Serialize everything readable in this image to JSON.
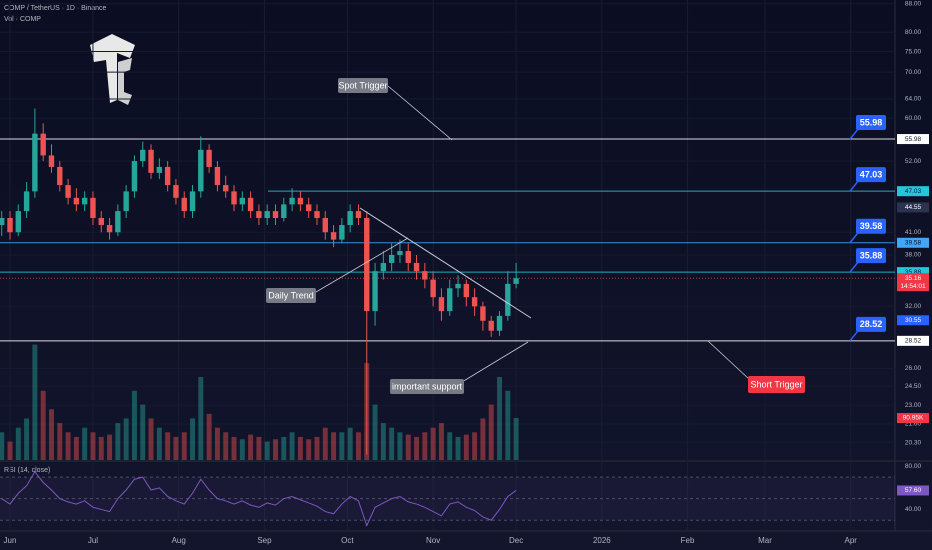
{
  "header": {
    "symbol": "COMP / TetherUS · 1D · Binance",
    "volume_label": "Vol · COMP"
  },
  "chart_data": [
    {
      "type": "candlestick",
      "x": [
        0,
        3,
        6,
        9,
        12,
        15,
        18,
        21,
        24,
        27,
        30,
        33,
        36,
        39,
        42,
        45,
        48,
        51,
        54,
        57,
        60,
        63,
        66,
        69,
        72,
        75,
        78,
        81,
        84,
        87,
        90,
        93,
        96,
        99,
        102,
        105,
        108,
        111,
        114,
        117,
        120,
        123,
        126,
        129,
        132,
        135,
        138,
        141,
        144,
        147,
        150,
        153,
        156,
        159,
        162,
        165,
        168,
        171,
        174,
        177,
        180,
        183,
        186
      ],
      "open": [
        42,
        43,
        41,
        44,
        47,
        57,
        53,
        51,
        48,
        46,
        45,
        46,
        43,
        42,
        41,
        44,
        47,
        52,
        54,
        50,
        51,
        48,
        46,
        44,
        47,
        54,
        51,
        48,
        47,
        45,
        46,
        44,
        43,
        44,
        43,
        45,
        46,
        45,
        44,
        43,
        41,
        40,
        42,
        44,
        43,
        31.5,
        36,
        37,
        38,
        38.5,
        37,
        36,
        35,
        33,
        31.5,
        34,
        34.5,
        33,
        32,
        30.5,
        29.5,
        31,
        34.5
      ],
      "high": [
        44,
        44,
        45,
        48.5,
        62,
        59,
        55,
        52,
        49,
        47.5,
        47,
        47,
        44,
        43,
        45,
        48,
        53,
        55.5,
        55,
        52.5,
        52,
        49,
        47,
        48,
        56.5,
        55,
        52,
        49.5,
        48,
        47,
        47,
        45,
        45,
        45,
        46,
        47.5,
        47,
        46,
        45,
        44,
        42,
        43,
        45,
        45,
        44,
        37,
        38.5,
        39.5,
        40,
        39.5,
        38,
        37,
        36,
        34,
        35,
        35.5,
        35,
        34,
        32.5,
        31,
        31.5,
        36,
        37
      ],
      "low": [
        40.5,
        40,
        40.5,
        43,
        46,
        52,
        50,
        47,
        45,
        44,
        44,
        42,
        41,
        40,
        40.5,
        43,
        46,
        51,
        49,
        49,
        47,
        45,
        43,
        43,
        46,
        50,
        47,
        46,
        44,
        44,
        43,
        42,
        42,
        42,
        42.5,
        44,
        44,
        43,
        42,
        40,
        39,
        39.5,
        41,
        42,
        19.5,
        30,
        35,
        36,
        37,
        36,
        35,
        34,
        32,
        30.5,
        31,
        33,
        32,
        31,
        29.5,
        28.9,
        29,
        30.5,
        34
      ],
      "close": [
        43,
        41,
        44,
        47,
        57,
        53,
        51,
        48,
        46,
        45,
        46,
        43,
        42,
        41,
        44,
        47,
        52,
        54,
        50,
        51,
        48,
        46,
        44,
        47,
        54,
        51,
        48,
        47,
        45,
        46,
        44,
        43,
        44,
        43,
        45,
        46,
        45,
        44,
        43,
        41,
        40,
        42,
        44,
        43,
        31.5,
        36,
        37,
        38,
        38.5,
        37,
        36,
        35,
        33,
        31.5,
        34,
        34.5,
        33,
        32,
        30.5,
        29.5,
        31,
        34.5,
        35.16
      ],
      "up_color": "#26a69a",
      "down_color": "#ef5350",
      "log_scale": true,
      "grid": true,
      "ylim": [
        19.15,
        89.1
      ],
      "yticks": [
        {
          "value": 88,
          "label": "88.00"
        },
        {
          "value": 80,
          "label": "80.00"
        },
        {
          "value": 75,
          "label": "75.00"
        },
        {
          "value": 70,
          "label": "70.00"
        },
        {
          "value": 64,
          "label": "64.00"
        },
        {
          "value": 60,
          "label": "60.00"
        },
        {
          "value": 52,
          "label": "52.00"
        },
        {
          "value": 41,
          "label": "41.00"
        },
        {
          "value": 38,
          "label": "38.00"
        },
        {
          "value": 32,
          "label": "32.00"
        },
        {
          "value": 26,
          "label": "26.00"
        },
        {
          "value": 24.5,
          "label": "24.50"
        },
        {
          "value": 23,
          "label": "23.00"
        },
        {
          "value": 21.6,
          "label": "21.60"
        },
        {
          "value": 20.3,
          "label": "20.30"
        }
      ],
      "xlim": [
        0,
        323
      ],
      "xticks": [
        {
          "value": 3,
          "label": "Jun"
        },
        {
          "value": 33,
          "label": "Jul"
        },
        {
          "value": 64,
          "label": "Aug"
        },
        {
          "value": 95,
          "label": "Sep"
        },
        {
          "value": 125,
          "label": "Oct"
        },
        {
          "value": 156,
          "label": "Nov"
        },
        {
          "value": 186,
          "label": "Dec"
        },
        {
          "value": 217,
          "label": "2026"
        },
        {
          "value": 248,
          "label": "Feb"
        },
        {
          "value": 276,
          "label": "Mar"
        },
        {
          "value": 307,
          "label": "Apr"
        }
      ],
      "volume": {
        "values": [
          60,
          40,
          70,
          90,
          250,
          150,
          110,
          80,
          60,
          50,
          70,
          60,
          50,
          55,
          80,
          90,
          150,
          120,
          90,
          70,
          60,
          50,
          60,
          90,
          180,
          100,
          70,
          60,
          50,
          45,
          55,
          50,
          40,
          45,
          50,
          60,
          50,
          45,
          50,
          70,
          60,
          60,
          70,
          60,
          210,
          120,
          80,
          70,
          60,
          55,
          50,
          60,
          70,
          80,
          60,
          50,
          55,
          60,
          90,
          120,
          180,
          150,
          90.95
        ],
        "ylim": [
          0,
          260
        ],
        "last_label": "90.95K"
      },
      "levels": [
        {
          "value": 55.98,
          "color": "#ffffff"
        },
        {
          "value": 47.03,
          "color": "#26c6da"
        },
        {
          "value": 39.58,
          "color": "#42a5f5"
        },
        {
          "value": 35.88,
          "color": "#26c6da"
        },
        {
          "value": 28.52,
          "color": "#ffffff"
        }
      ],
      "price_badges": [
        {
          "value": 44.55,
          "color": "#2a3350"
        },
        {
          "value": 30.55,
          "color": "#2962ff"
        }
      ],
      "countdown": "14:54:01",
      "annotations": [
        "Spot Trigger",
        "Daily Trend",
        "important support",
        "Short Trigger"
      ]
    },
    {
      "type": "line",
      "title": "RSI (14, close)",
      "values": [
        50,
        45,
        55,
        62,
        75,
        65,
        58,
        50,
        47,
        45,
        48,
        42,
        40,
        38,
        50,
        58,
        68,
        70,
        58,
        60,
        52,
        48,
        45,
        55,
        68,
        58,
        50,
        48,
        45,
        48,
        44,
        42,
        46,
        44,
        50,
        52,
        49,
        46,
        43,
        38,
        36,
        45,
        52,
        48,
        25,
        42,
        46,
        50,
        52,
        47,
        45,
        42,
        38,
        34,
        45,
        47,
        42,
        39,
        33,
        30,
        40,
        52,
        57.6
      ],
      "color": "#7e57c2",
      "ylim": [
        20,
        84
      ],
      "yticks": [
        {
          "value": 80,
          "label": "80.00"
        },
        {
          "value": 40,
          "label": "40.00"
        }
      ],
      "bands": [
        70,
        50,
        30
      ],
      "last_label": "57.60"
    }
  ]
}
